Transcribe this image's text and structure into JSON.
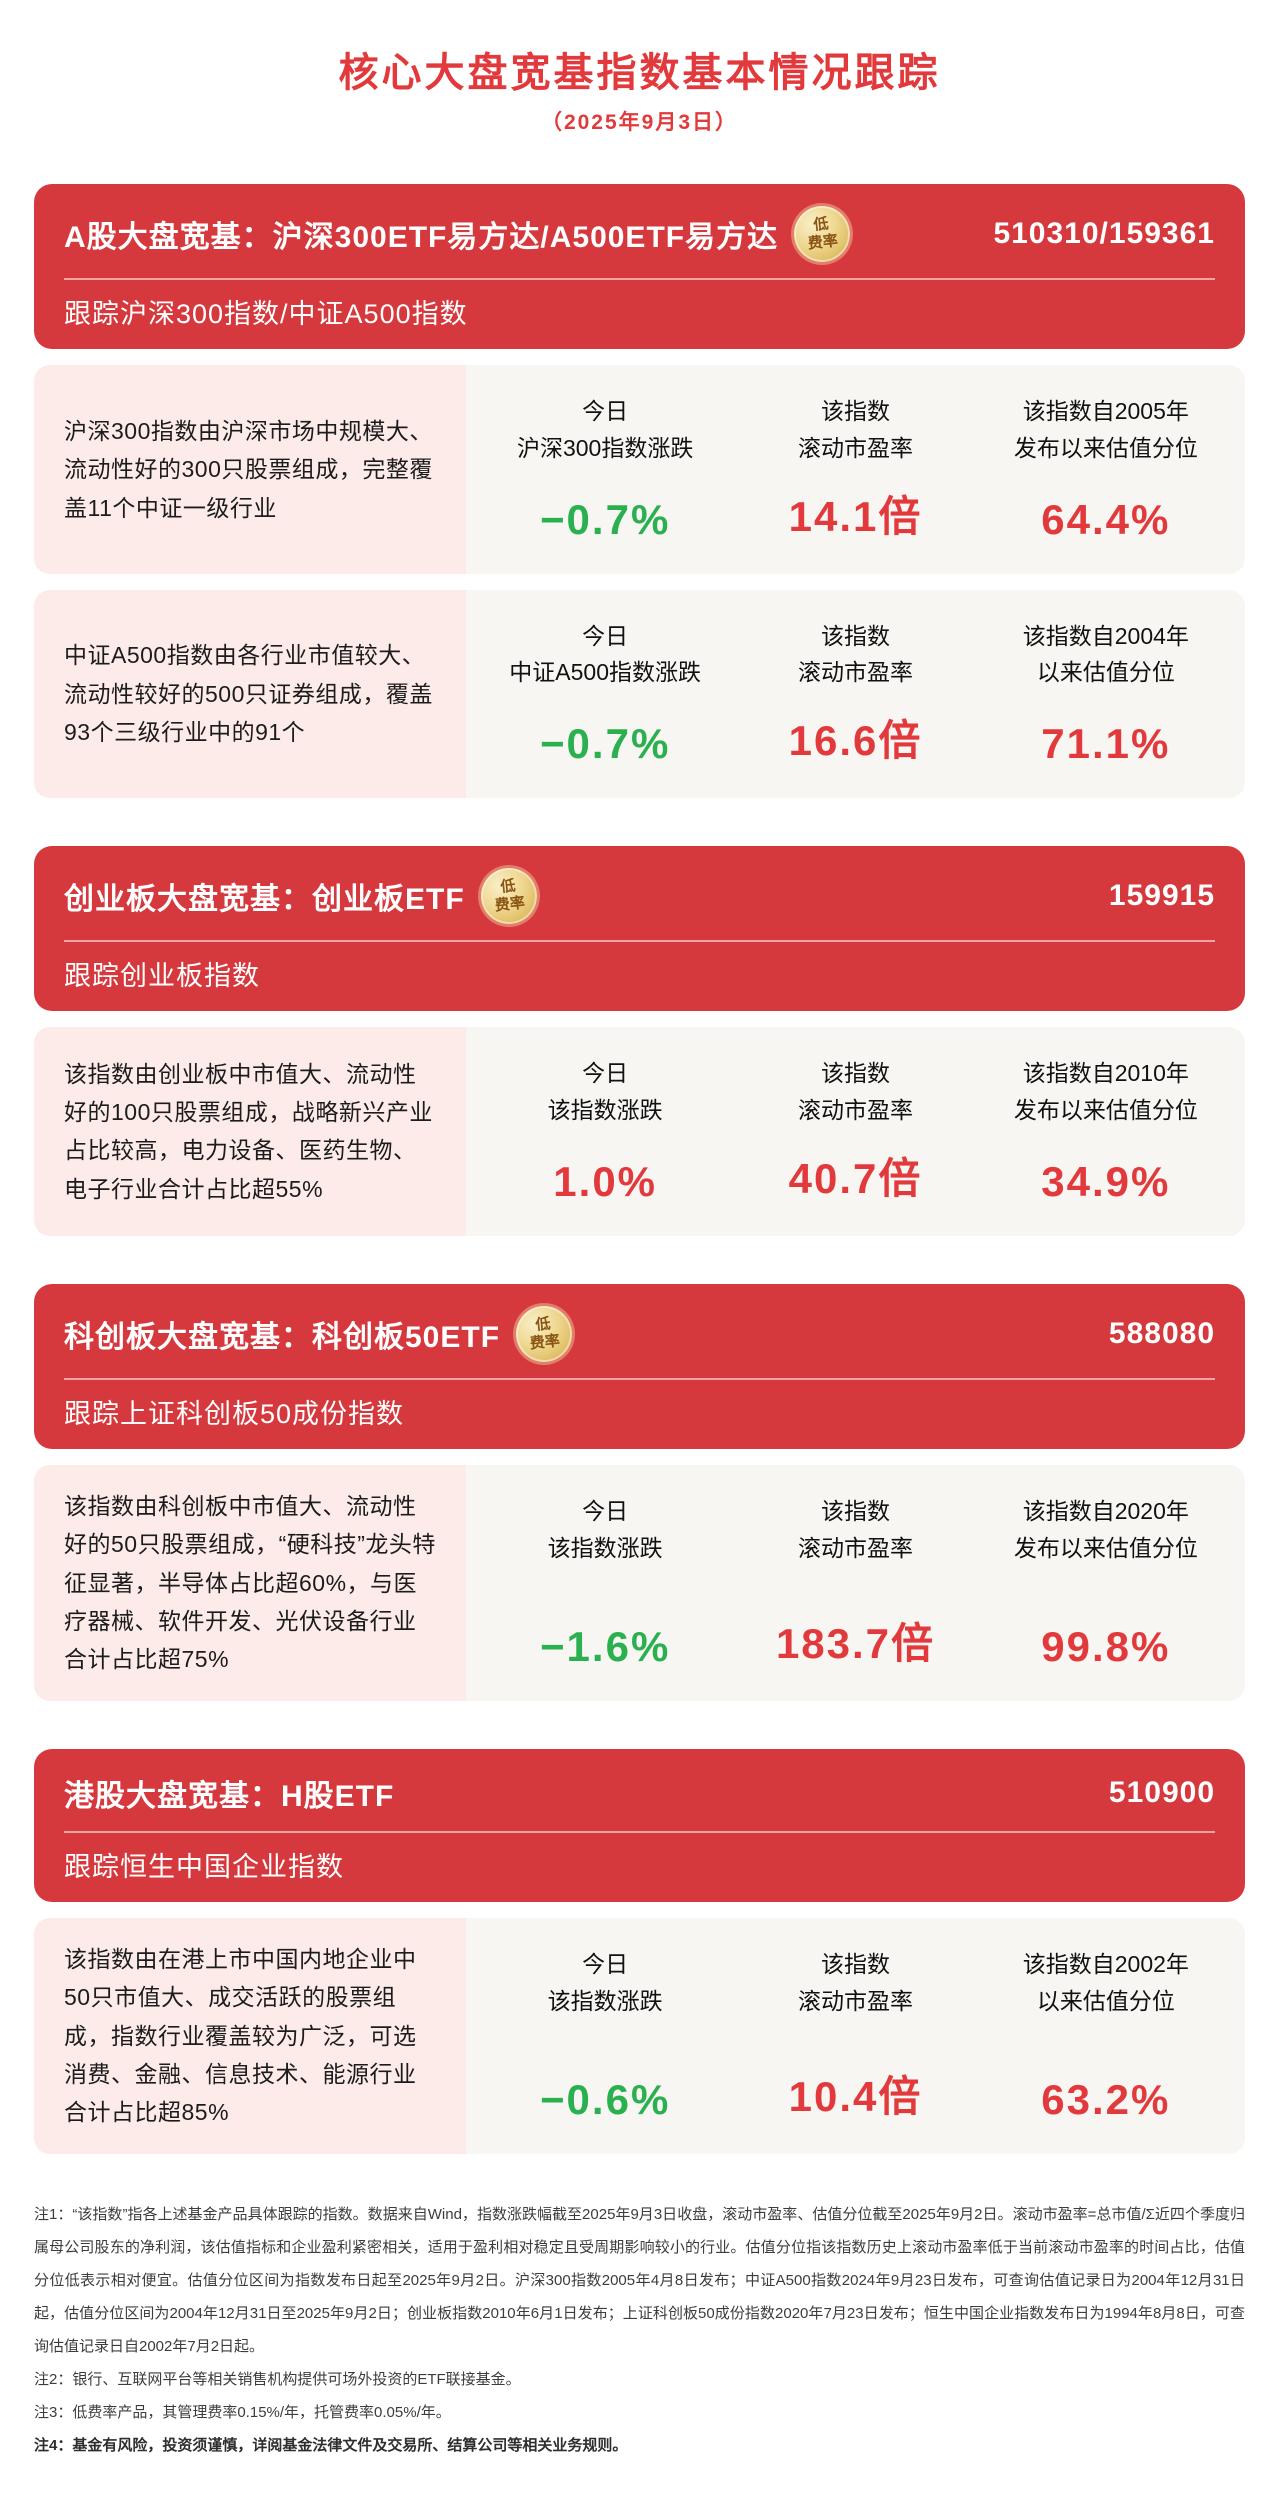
{
  "page": {
    "title": "核心大盘宽基指数基本情况跟踪",
    "date": "（2025年9月3日）"
  },
  "colors": {
    "red": "#e23a3c",
    "green": "#2bb04f",
    "header_red": "#d6393d",
    "desc_pink": "#fcebe8",
    "stats_bg": "#f7f6f3",
    "badge_gold": "#e6c06a"
  },
  "badge": {
    "line1": "低",
    "line2": "费率"
  },
  "sections": [
    {
      "header_title": "A股大盘宽基：沪深300ETF易方达/A500ETF易方达",
      "code": "510310/159361",
      "header_subtitle": "跟踪沪深300指数/中证A500指数",
      "rows": [
        {
          "description": "沪深300指数由沪深市场中规模大、流动性好的300只股票组成，完整覆盖11个中证一级行业",
          "stats": [
            {
              "label": "今日\n沪深300指数涨跌",
              "value": "−0.7%",
              "color": "green"
            },
            {
              "label": "该指数\n滚动市盈率",
              "value": "14.1倍",
              "color": "red"
            },
            {
              "label": "该指数自2005年\n发布以来估值分位",
              "value": "64.4%",
              "color": "red"
            }
          ]
        },
        {
          "description": "中证A500指数由各行业市值较大、流动性较好的500只证券组成，覆盖93个三级行业中的91个",
          "stats": [
            {
              "label": "今日\n中证A500指数涨跌",
              "value": "−0.7%",
              "color": "green"
            },
            {
              "label": "该指数\n滚动市盈率",
              "value": "16.6倍",
              "color": "red"
            },
            {
              "label": "该指数自2004年\n以来估值分位",
              "value": "71.1%",
              "color": "red"
            }
          ]
        }
      ]
    },
    {
      "header_title": "创业板大盘宽基：创业板ETF",
      "code": "159915",
      "header_subtitle": "跟踪创业板指数",
      "rows": [
        {
          "description": "该指数由创业板中市值大、流动性好的100只股票组成，战略新兴产业占比较高，电力设备、医药生物、电子行业合计占比超55%",
          "stats": [
            {
              "label": "今日\n该指数涨跌",
              "value": "1.0%",
              "color": "red"
            },
            {
              "label": "该指数\n滚动市盈率",
              "value": "40.7倍",
              "color": "red"
            },
            {
              "label": "该指数自2010年\n发布以来估值分位",
              "value": "34.9%",
              "color": "red"
            }
          ]
        }
      ]
    },
    {
      "header_title": "科创板大盘宽基：科创板50ETF",
      "code": "588080",
      "header_subtitle": "跟踪上证科创板50成份指数",
      "rows": [
        {
          "description": "该指数由科创板中市值大、流动性好的50只股票组成，“硬科技”龙头特征显著，半导体占比超60%，与医疗器械、软件开发、光伏设备行业合计占比超75%",
          "stats": [
            {
              "label": "今日\n该指数涨跌",
              "value": "−1.6%",
              "color": "green"
            },
            {
              "label": "该指数\n滚动市盈率",
              "value": "183.7倍",
              "color": "red"
            },
            {
              "label": "该指数自2020年\n发布以来估值分位",
              "value": "99.8%",
              "color": "red"
            }
          ]
        }
      ]
    },
    {
      "header_title": "港股大盘宽基：H股ETF",
      "code": "510900",
      "header_subtitle": "跟踪恒生中国企业指数",
      "rows": [
        {
          "description": "该指数由在港上市中国内地企业中50只市值大、成交活跃的股票组成，指数行业覆盖较为广泛，可选消费、金融、信息技术、能源行业合计占比超85%",
          "stats": [
            {
              "label": "今日\n该指数涨跌",
              "value": "−0.6%",
              "color": "green"
            },
            {
              "label": "该指数\n滚动市盈率",
              "value": "10.4倍",
              "color": "red"
            },
            {
              "label": "该指数自2002年\n以来估值分位",
              "value": "63.2%",
              "color": "red"
            }
          ]
        }
      ]
    }
  ],
  "notes": [
    "注1：“该指数”指各上述基金产品具体跟踪的指数。数据来自Wind，指数涨跌幅截至2025年9月3日收盘，滚动市盈率、估值分位截至2025年9月2日。滚动市盈率=总市值/Σ近四个季度归属母公司股东的净利润，该估值指标和企业盈利紧密相关，适用于盈利相对稳定且受周期影响较小的行业。估值分位指该指数历史上滚动市盈率低于当前滚动市盈率的时间占比，估值分位低表示相对便宜。估值分位区间为指数发布日起至2025年9月2日。沪深300指数2005年4月8日发布；中证A500指数2024年9月23日发布，可查询估值记录日为2004年12月31日起，估值分位区间为2004年12月31日至2025年9月2日；创业板指数2010年6月1日发布；上证科创板50成份指数2020年7月23日发布；恒生中国企业指数发布日为1994年8月8日，可查询估值记录日自2002年7月2日起。",
    "注2：银行、互联网平台等相关销售机构提供可场外投资的ETF联接基金。",
    "注3：低费率产品，其管理费率0.15%/年，托管费率0.05%/年。",
    "注4：基金有风险，投资须谨慎，详阅基金法律文件及交易所、结算公司等相关业务规则。"
  ]
}
